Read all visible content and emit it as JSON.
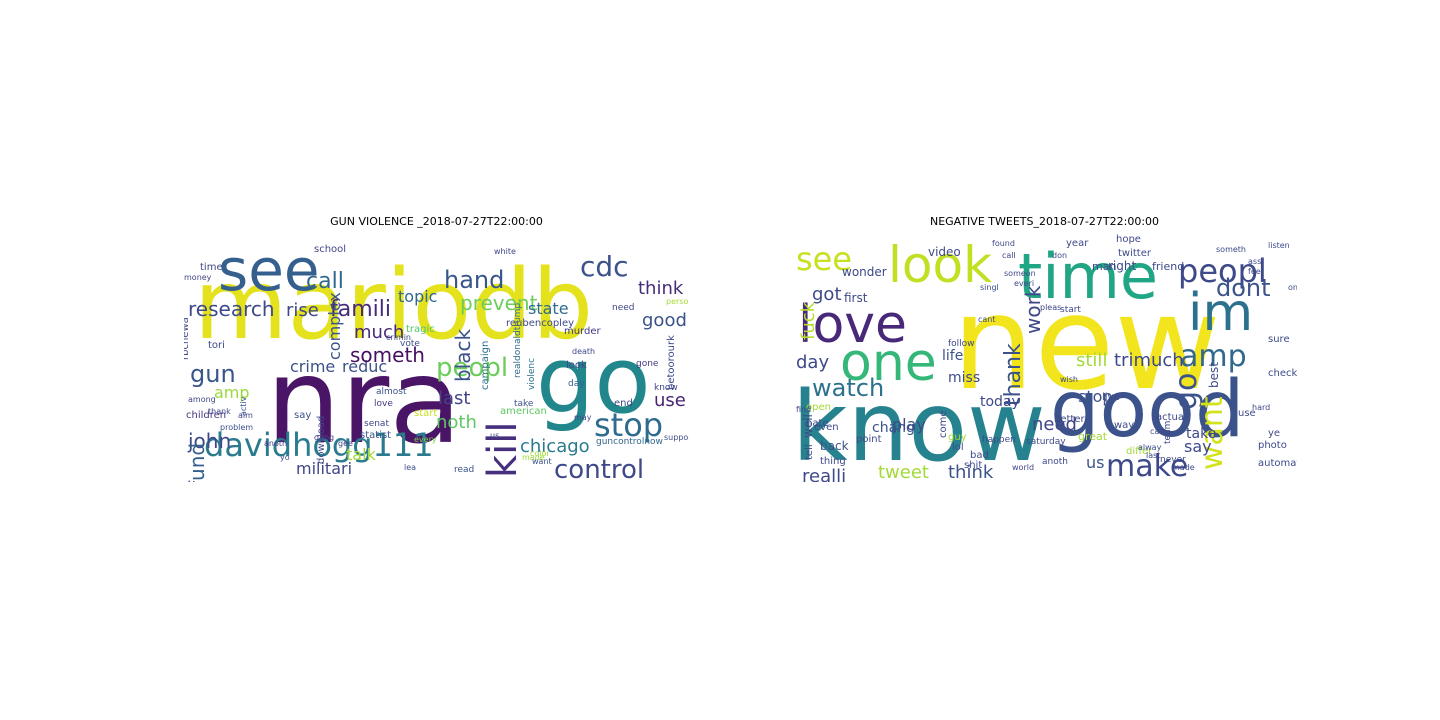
{
  "figure": {
    "panels": [
      {
        "title": "GUN VIOLENCE _2018-07-27T22:00:00",
        "words": [
          {
            "text": "mariodb",
            "color": "#e3e21c"
          },
          {
            "text": "nra",
            "color": "#4a1566"
          },
          {
            "text": "go",
            "color": "#22878c"
          },
          {
            "text": "see",
            "color": "#355f8d"
          },
          {
            "text": "davidhogg111",
            "color": "#2a7b8e"
          },
          {
            "text": "cdc",
            "color": "#3b528b"
          },
          {
            "text": "call",
            "color": "#31688e"
          },
          {
            "text": "hand",
            "color": "#39568c"
          },
          {
            "text": "famili",
            "color": "#472a7a"
          },
          {
            "text": "stop",
            "color": "#2f6b8e"
          },
          {
            "text": "control",
            "color": "#3e4989"
          },
          {
            "text": "kill",
            "color": "#46307e"
          },
          {
            "text": "gun",
            "color": "#39568c"
          },
          {
            "text": "peopl",
            "color": "#6ccd5a"
          },
          {
            "text": "prevent",
            "color": "#6ccd5a"
          },
          {
            "text": "research",
            "color": "#3e4989"
          },
          {
            "text": "think",
            "color": "#472c7a"
          },
          {
            "text": "much",
            "color": "#472a7a"
          },
          {
            "text": "black",
            "color": "#3b528b"
          },
          {
            "text": "rise",
            "color": "#3f4788"
          },
          {
            "text": "good",
            "color": "#3a538b"
          },
          {
            "text": "state",
            "color": "#2f6c8e"
          },
          {
            "text": "topic",
            "color": "#31688e"
          },
          {
            "text": "crime",
            "color": "#3b518b"
          },
          {
            "text": "reduc",
            "color": "#3b528b"
          },
          {
            "text": "someth",
            "color": "#471063"
          },
          {
            "text": "complex",
            "color": "#3a548c"
          },
          {
            "text": "john",
            "color": "#3e4989"
          },
          {
            "text": "fund",
            "color": "#355f8d"
          },
          {
            "text": "chicago",
            "color": "#2a7b8e"
          },
          {
            "text": "noth",
            "color": "#5ec962"
          },
          {
            "text": "last",
            "color": "#414487"
          },
          {
            "text": "use",
            "color": "#482475"
          },
          {
            "text": "talk",
            "color": "#a2da37"
          },
          {
            "text": "amp",
            "color": "#9bd93c"
          },
          {
            "text": "militari",
            "color": "#3f4788"
          },
          {
            "text": "school",
            "color": "#404588"
          },
          {
            "text": "money",
            "color": "#404688"
          },
          {
            "text": "tragic",
            "color": "#52c569"
          },
          {
            "text": "murder",
            "color": "#443a83"
          },
          {
            "text": "campaign",
            "color": "#2c718e"
          },
          {
            "text": "reubencopley",
            "color": "#3e4989"
          },
          {
            "text": "children",
            "color": "#46337f"
          },
          {
            "text": "tori",
            "color": "#3e4989"
          },
          {
            "text": "download",
            "color": "#3e4989"
          },
          {
            "text": "love",
            "color": "#443983"
          },
          {
            "text": "senat",
            "color": "#404688"
          },
          {
            "text": "almost",
            "color": "#3b518b"
          },
          {
            "text": "vote",
            "color": "#3c4f8a"
          },
          {
            "text": "white",
            "color": "#404588"
          },
          {
            "text": "death",
            "color": "#3e4a89"
          },
          {
            "text": "look",
            "color": "#404688"
          },
          {
            "text": "day",
            "color": "#355e8d"
          },
          {
            "text": "take",
            "color": "#3b528b"
          },
          {
            "text": "need",
            "color": "#3f4788"
          },
          {
            "text": "gone",
            "color": "#443983"
          },
          {
            "text": "person",
            "color": "#a8db34"
          },
          {
            "text": "end",
            "color": "#3e4989"
          },
          {
            "text": "know",
            "color": "#404688"
          },
          {
            "text": "american",
            "color": "#5ec962"
          },
          {
            "text": "made",
            "color": "#a2da37"
          },
          {
            "text": "support",
            "color": "#3e4a89"
          },
          {
            "text": "statist",
            "color": "#3a548c"
          },
          {
            "text": "gang",
            "color": "#404588"
          },
          {
            "text": "problem",
            "color": "#3b518b"
          },
          {
            "text": "anoth",
            "color": "#443983"
          },
          {
            "text": "among",
            "color": "#3e4989"
          },
          {
            "text": "thank",
            "color": "#3f4788"
          },
          {
            "text": "read",
            "color": "#3b528b"
          },
          {
            "text": "color",
            "color": "#a2da37"
          },
          {
            "text": "guncontrolnow",
            "color": "#31688e"
          },
          {
            "text": "start",
            "color": "#c8e020"
          },
          {
            "text": "violenc",
            "color": "#2c728e"
          },
          {
            "text": "every",
            "color": "#7ad151"
          },
          {
            "text": "yo",
            "color": "#3e4989"
          },
          {
            "text": "say",
            "color": "#3b528b"
          },
          {
            "text": "aim",
            "color": "#404588"
          },
          {
            "text": "time",
            "color": "#3e4989"
          },
          {
            "text": "activ",
            "color": "#3a548c"
          },
          {
            "text": "gee",
            "color": "#404588"
          },
          {
            "text": "want",
            "color": "#3b528b"
          },
          {
            "text": "may",
            "color": "#3e4989"
          },
          {
            "text": "crimin",
            "color": "#3e4989"
          },
          {
            "text": "betoorourk",
            "color": "#3e4989"
          },
          {
            "text": "realdonaldtrump",
            "color": "#2c718e"
          },
          {
            "text": "rbcnewa",
            "color": "#3e4989"
          },
          {
            "text": "us",
            "color": "#3e4989"
          },
          {
            "text": "lea",
            "color": "#3b528b"
          }
        ]
      },
      {
        "title": "NEGATIVE TWEETS_2018-07-27T22:00:00",
        "words": [
          {
            "text": "new",
            "color": "#f2e51d"
          },
          {
            "text": "know",
            "color": "#26828e"
          },
          {
            "text": "good",
            "color": "#3b528b"
          },
          {
            "text": "time",
            "color": "#21a685"
          },
          {
            "text": "look",
            "color": "#c2df23"
          },
          {
            "text": "im",
            "color": "#2c718e"
          },
          {
            "text": "love",
            "color": "#482878"
          },
          {
            "text": "one",
            "color": "#35b779"
          },
          {
            "text": "peopl",
            "color": "#3e4989"
          },
          {
            "text": "see",
            "color": "#c8e020"
          },
          {
            "text": "amp",
            "color": "#31688e"
          },
          {
            "text": "go",
            "color": "#3b528b"
          },
          {
            "text": "watch",
            "color": "#2c718e"
          },
          {
            "text": "make",
            "color": "#3e4989"
          },
          {
            "text": "want",
            "color": "#d2e21b"
          },
          {
            "text": "dont",
            "color": "#3b528b"
          },
          {
            "text": "got",
            "color": "#3e4989"
          },
          {
            "text": "work",
            "color": "#3f4788"
          },
          {
            "text": "thank",
            "color": "#3b528b"
          },
          {
            "text": "fuck",
            "color": "#b5de2b"
          },
          {
            "text": "day",
            "color": "#3e4989"
          },
          {
            "text": "tweet",
            "color": "#a2da37"
          },
          {
            "text": "realli",
            "color": "#3e4989"
          },
          {
            "text": "think",
            "color": "#3b528b"
          },
          {
            "text": "play",
            "color": "#3e4989"
          },
          {
            "text": "need",
            "color": "#404688"
          },
          {
            "text": "still",
            "color": "#a2da37"
          },
          {
            "text": "trimuch",
            "color": "#3e4989"
          },
          {
            "text": "us",
            "color": "#3b528b"
          },
          {
            "text": "say",
            "color": "#3e4989"
          },
          {
            "text": "take",
            "color": "#3e4989"
          },
          {
            "text": "best",
            "color": "#3e4989"
          },
          {
            "text": "stop",
            "color": "#3b528b"
          },
          {
            "text": "life",
            "color": "#3b528b"
          },
          {
            "text": "miss",
            "color": "#3e4989"
          },
          {
            "text": "chang",
            "color": "#3b528b"
          },
          {
            "text": "today",
            "color": "#3e4989"
          },
          {
            "text": "wonder",
            "color": "#3e4989"
          },
          {
            "text": "first",
            "color": "#3e4989"
          },
          {
            "text": "back",
            "color": "#3b528b"
          },
          {
            "text": "well",
            "color": "#3e4989"
          },
          {
            "text": "right",
            "color": "#3e4989"
          },
          {
            "text": "great",
            "color": "#a2da37"
          },
          {
            "text": "friend",
            "color": "#3e4989"
          },
          {
            "text": "sure",
            "color": "#3e4989"
          },
          {
            "text": "video",
            "color": "#3e4989"
          },
          {
            "text": "man",
            "color": "#3e4989"
          },
          {
            "text": "hope",
            "color": "#3e4989"
          },
          {
            "text": "twitter",
            "color": "#3e4989"
          },
          {
            "text": "year",
            "color": "#3e4989"
          },
          {
            "text": "live",
            "color": "#3e4989"
          },
          {
            "text": "better",
            "color": "#3e4989"
          },
          {
            "text": "point",
            "color": "#3e4989"
          },
          {
            "text": "shit",
            "color": "#3e4989"
          },
          {
            "text": "bad",
            "color": "#3e4989"
          },
          {
            "text": "guy",
            "color": "#a2da37"
          },
          {
            "text": "lol",
            "color": "#3e4989"
          },
          {
            "text": "come",
            "color": "#3e4989"
          },
          {
            "text": "tell",
            "color": "#3e4989"
          },
          {
            "text": "thing",
            "color": "#3e4989"
          },
          {
            "text": "even",
            "color": "#3e4989"
          },
          {
            "text": "open",
            "color": "#a2da37"
          },
          {
            "text": "hate",
            "color": "#3e4989"
          },
          {
            "text": "actual",
            "color": "#3e4989"
          },
          {
            "text": "differ",
            "color": "#a2da37"
          },
          {
            "text": "way",
            "color": "#3e4989"
          },
          {
            "text": "ye",
            "color": "#3e4989"
          },
          {
            "text": "use",
            "color": "#3e4989"
          },
          {
            "text": "photo",
            "color": "#3e4989"
          },
          {
            "text": "check",
            "color": "#3e4989"
          },
          {
            "text": "automat",
            "color": "#3e4989"
          },
          {
            "text": "start",
            "color": "#3e4989"
          },
          {
            "text": "follow",
            "color": "#3e4989"
          },
          {
            "text": "happen",
            "color": "#3e4989"
          },
          {
            "text": "saturday",
            "color": "#3e4989"
          },
          {
            "text": "never",
            "color": "#3e4989"
          },
          {
            "text": "team",
            "color": "#3e4989"
          },
          {
            "text": "anoth",
            "color": "#3e4989"
          },
          {
            "text": "cant",
            "color": "#3e4989"
          },
          {
            "text": "pleas",
            "color": "#3e4989"
          },
          {
            "text": "world",
            "color": "#3e4989"
          },
          {
            "text": "care",
            "color": "#3e4989"
          },
          {
            "text": "wish",
            "color": "#3e4989"
          },
          {
            "text": "find",
            "color": "#3e4989"
          },
          {
            "text": "found",
            "color": "#3e4989"
          },
          {
            "text": "someon",
            "color": "#3e4989"
          },
          {
            "text": "call",
            "color": "#3e4989"
          },
          {
            "text": "everi",
            "color": "#3e4989"
          },
          {
            "text": "singl",
            "color": "#3e4989"
          },
          {
            "text": "last",
            "color": "#3e4989"
          },
          {
            "text": "made",
            "color": "#3e4989"
          },
          {
            "text": "alway",
            "color": "#3e4989"
          },
          {
            "text": "someth",
            "color": "#3e4989"
          },
          {
            "text": "listen",
            "color": "#3e4989"
          },
          {
            "text": "don",
            "color": "#3e4989"
          },
          {
            "text": "ass",
            "color": "#3e4989"
          },
          {
            "text": "feel",
            "color": "#3e4989"
          },
          {
            "text": "hard",
            "color": "#3e4989"
          },
          {
            "text": "one person",
            "color": "#3e4989"
          },
          {
            "text": "let",
            "color": "#3e4989"
          },
          {
            "text": "lie",
            "color": "#3e4989"
          },
          {
            "text": "noth",
            "color": "#3e4989"
          },
          {
            "text": "airwadi",
            "color": "#3e4989"
          },
          {
            "text": "mean",
            "color": "#3e4989"
          },
          {
            "text": "week",
            "color": "#3e4989"
          },
          {
            "text": "night",
            "color": "#3e4989"
          },
          {
            "text": "put",
            "color": "#3e4989"
          },
          {
            "text": "wait",
            "color": "#3e4989"
          },
          {
            "text": "hear",
            "color": "#3e4989"
          },
          {
            "text": "decid",
            "color": "#3e4989"
          },
          {
            "text": "parti",
            "color": "#3e4989"
          }
        ]
      }
    ]
  }
}
